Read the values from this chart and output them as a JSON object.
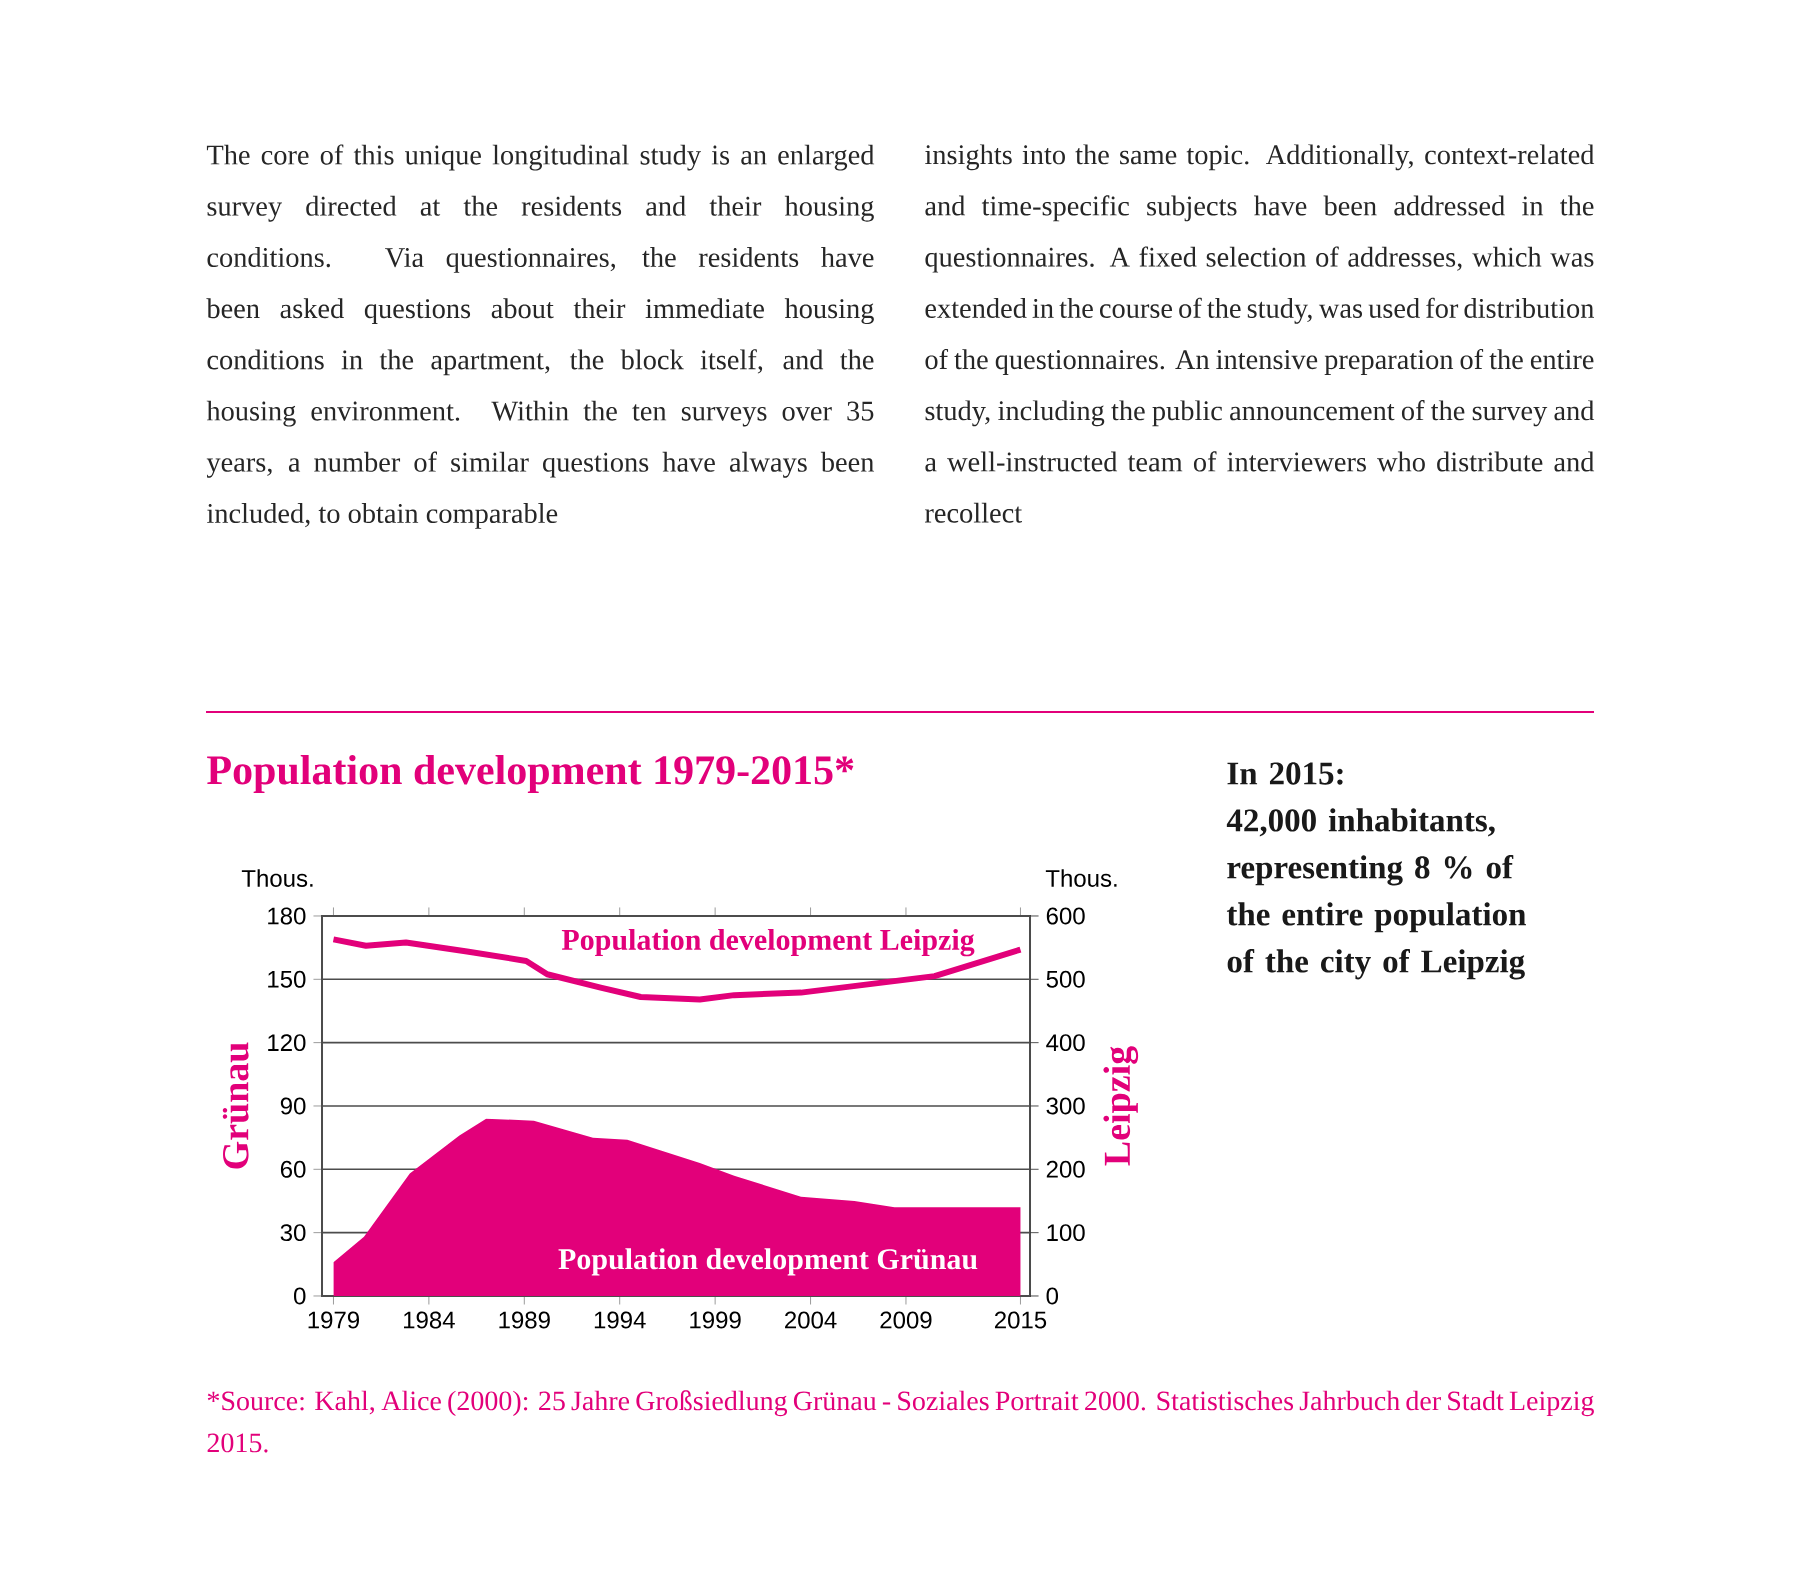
{
  "chart_data": {
    "type": "area",
    "title": "Population development 1979-2015*",
    "ylabel": "Grünau",
    "y2label": "Leipzig",
    "annotations": [
      "Thous.",
      "Thous.",
      "The core of this unique longitudinal study is an enlarged survey directed at the residents and their housing conditions. Via questionnaires, the residents have been asked questions about their immediate housing conditions in the apartment, the block itself, and the housing environment. Within the ten surveys over 35 years, a number of similar questions have always been included, to obtain comparable",
      "insights into the same topic. Additionally, context-related and time-specific subjects have been addressed in the questionnaires. A fixed selection of addresses, which was extended in the course of the study, was used for distribution of the questionnaires. An intensive preparation of the entire study, including the public announcement of the survey and a well-instructed team of interviewers who distribute and recollect",
      "In 2015:",
      "42,000 inhabitants, representing 8 % of the entire population of the city of Leipzig",
      "*Source: Kahl, Alice (2000): 25 Jahre Großsiedlung Grünau - Soziales Portrait 2000.  Statistisches Jahrbuch der Stadt Leipzig 2015."
    ],
    "series": [
      {
        "name": "Population development Leipzig",
        "type": "line",
        "axis": "y2",
        "color": "#e2007a",
        "line_style": "solid",
        "x": [
          1979,
          1980.7,
          1982.8,
          1986,
          1989.1,
          1990.2,
          1993,
          1995.1,
          1998.2,
          2000,
          2003.5,
          2007,
          2010.5,
          2015
        ],
        "values": [
          563,
          553,
          558,
          544,
          529,
          508,
          487,
          472,
          468,
          475,
          479,
          492,
          505,
          547
        ]
      },
      {
        "name": "Population development Grünau",
        "color": "#e2007a",
        "x": [
          1979,
          1980.6,
          1983,
          1985.6,
          1987,
          1989.5,
          1992.6,
          1994.4,
          1998.2,
          2000,
          2003.5,
          2006.3,
          2008.4,
          2015
        ],
        "values": [
          16,
          28,
          58,
          76,
          84,
          83,
          75,
          74,
          63,
          57,
          47,
          45,
          42,
          42
        ]
      }
    ],
    "xlim": [
      1978.4,
      2015.5
    ],
    "xticks": [
      1979,
      1984,
      1989,
      1994,
      1999,
      2004,
      2009,
      2015
    ],
    "ylim": [
      0,
      180
    ],
    "yticks": [
      0,
      30,
      60,
      90,
      120,
      150,
      180
    ],
    "y2lim": [
      0,
      600
    ],
    "y2ticks": [
      0,
      100,
      200,
      300,
      400,
      500,
      600
    ],
    "grid": "y",
    "marker": "none"
  }
}
